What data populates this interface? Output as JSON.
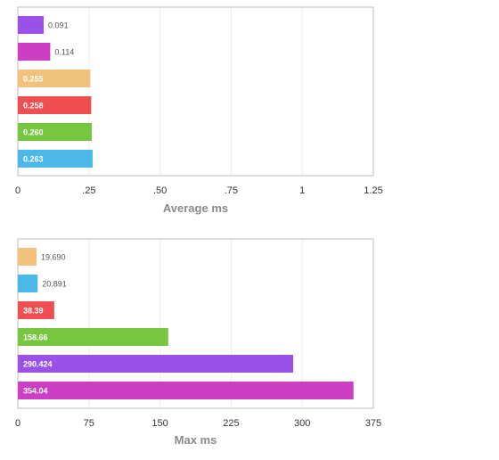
{
  "chart_data": [
    {
      "type": "bar",
      "orientation": "horizontal",
      "xlabel": "Average ms",
      "xlim": [
        0,
        1.25
      ],
      "ticks": [
        0,
        0.25,
        0.5,
        0.75,
        1,
        1.25
      ],
      "tick_labels": [
        "0",
        ".25",
        ".50",
        ".75",
        "1",
        "1.25"
      ],
      "grid": true,
      "bars": [
        {
          "label": "0.091",
          "value": 0.091,
          "color": "#9b51e8"
        },
        {
          "label": "0.114",
          "value": 0.114,
          "color": "#cc3ec3"
        },
        {
          "label": "0.255",
          "value": 0.255,
          "color": "#f0c27c"
        },
        {
          "label": "0.258",
          "value": 0.258,
          "color": "#ef4f50"
        },
        {
          "label": "0.260",
          "value": 0.26,
          "color": "#76c63f"
        },
        {
          "label": "0.263",
          "value": 0.263,
          "color": "#4bb8ea"
        }
      ]
    },
    {
      "type": "bar",
      "orientation": "horizontal",
      "xlabel": "Max ms",
      "xlim": [
        0,
        375
      ],
      "ticks": [
        0,
        75,
        150,
        225,
        300,
        375
      ],
      "tick_labels": [
        "0",
        "75",
        "150",
        "225",
        "300",
        "375"
      ],
      "grid": true,
      "bars": [
        {
          "label": "19.690",
          "value": 19.69,
          "color": "#f0c27c"
        },
        {
          "label": "20.891",
          "value": 20.891,
          "color": "#4bb8ea"
        },
        {
          "label": "38.39",
          "value": 38.39,
          "color": "#ef4f50"
        },
        {
          "label": "158.66",
          "value": 158.66,
          "color": "#76c63f"
        },
        {
          "label": "290.424",
          "value": 290.424,
          "color": "#9b51e8"
        },
        {
          "label": "354.04",
          "value": 354.04,
          "color": "#cc3ec3"
        }
      ]
    }
  ]
}
